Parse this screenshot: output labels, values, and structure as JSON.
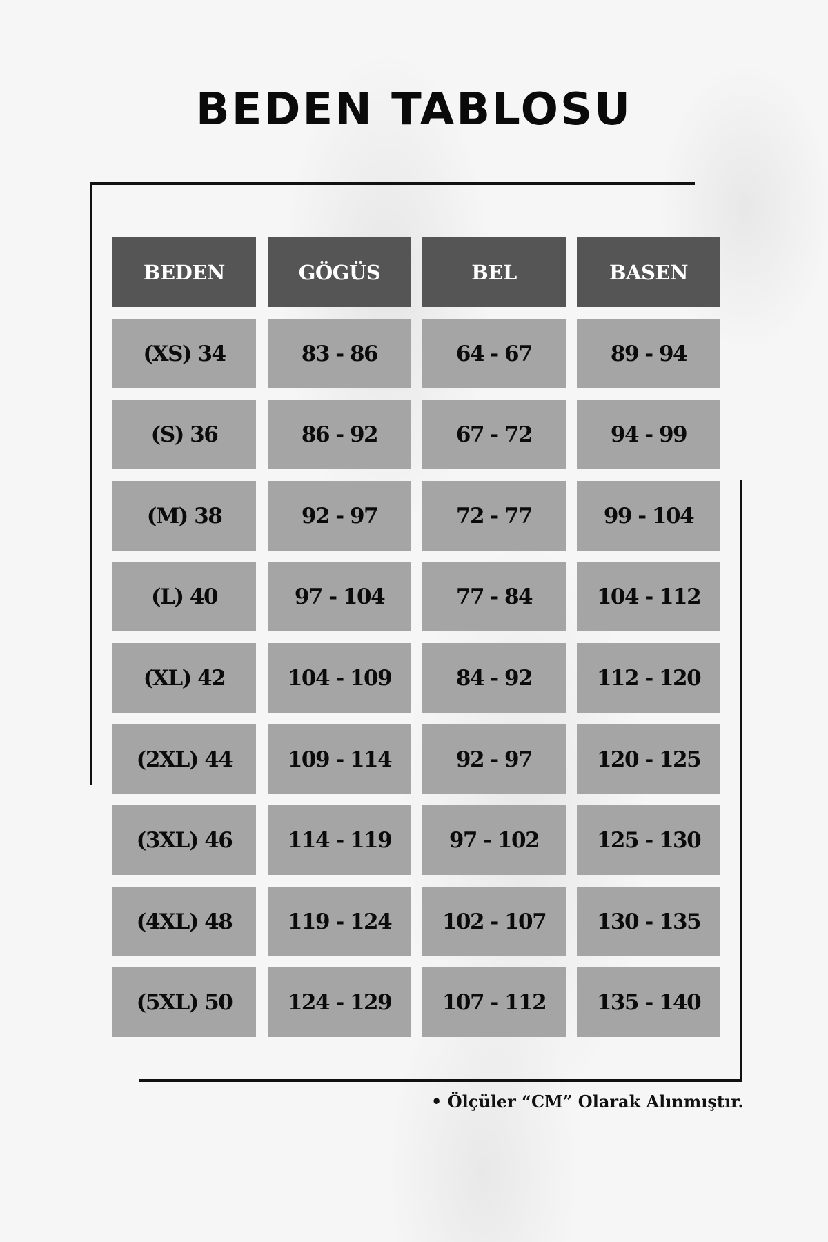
{
  "title": "BEDEN TABLOSU",
  "table": {
    "headers": [
      "BEDEN",
      "GÖGÜS",
      "BEL",
      "BASEN"
    ],
    "rows": [
      [
        "(XS) 34",
        "83 - 86",
        "64 - 67",
        "89 - 94"
      ],
      [
        "(S) 36",
        "86 - 92",
        "67 - 72",
        "94 - 99"
      ],
      [
        "(M) 38",
        "92 - 97",
        "72 - 77",
        "99 - 104"
      ],
      [
        "(L) 40",
        "97 - 104",
        "77 - 84",
        "104 - 112"
      ],
      [
        "(XL) 42",
        "104 - 109",
        "84 - 92",
        "112 - 120"
      ],
      [
        "(2XL) 44",
        "109 - 114",
        "92 - 97",
        "120 - 125"
      ],
      [
        "(3XL) 46",
        "114 - 119",
        "97 - 102",
        "125 - 130"
      ],
      [
        "(4XL) 48",
        "119 - 124",
        "102 - 107",
        "130 - 135"
      ],
      [
        "(5XL) 50",
        "124 - 129",
        "107 - 112",
        "135 - 140"
      ]
    ]
  },
  "footnote": "• Ölçüler “CM” Olarak Alınmıştır.",
  "colors": {
    "header_bg": "#555555",
    "cell_bg": "#a5a5a5",
    "background": "#f6f6f6"
  }
}
